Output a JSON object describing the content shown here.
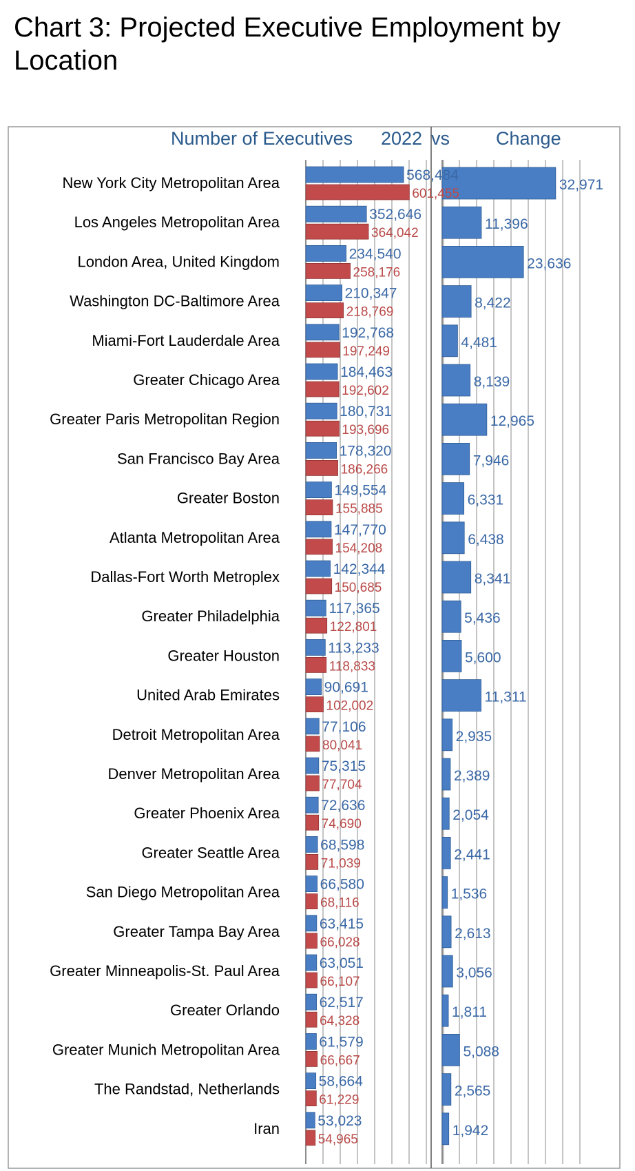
{
  "title": "Chart 3: Projected Executive Employment by Location",
  "colors": {
    "series_2022": "#4a7ec4",
    "series_compare": "#c34a4a",
    "change": "#4a7ec4",
    "header_text": "#2a5a8c"
  },
  "chart_data": [
    {
      "type": "bar",
      "orientation": "horizontal",
      "header": "Number of Executives",
      "header_year": "2022",
      "header_vs": "vs",
      "categories": [
        "New York City Metropolitan Area",
        "Los Angeles Metropolitan Area",
        "London Area, United Kingdom",
        "Washington DC-Baltimore Area",
        "Miami-Fort Lauderdale Area",
        "Greater Chicago Area",
        "Greater Paris Metropolitan Region",
        "San Francisco Bay Area",
        "Greater Boston",
        "Atlanta Metropolitan Area",
        "Dallas-Fort Worth Metroplex",
        "Greater Philadelphia",
        "Greater Houston",
        "United Arab Emirates",
        "Detroit Metropolitan Area",
        "Denver Metropolitan Area",
        "Greater Phoenix Area",
        "Greater Seattle Area",
        "San Diego Metropolitan Area",
        "Greater Tampa Bay Area",
        "Greater Minneapolis-St. Paul Area",
        "Greater Orlando",
        "Greater Munich Metropolitan Area",
        "The Randstad, Netherlands",
        "Iran"
      ],
      "series": [
        {
          "values": [
            568484,
            352646,
            234540,
            210347,
            192768,
            184463,
            180731,
            178320,
            149554,
            147770,
            142344,
            117365,
            113233,
            90691,
            77106,
            75315,
            72636,
            68598,
            66580,
            63415,
            63051,
            62517,
            61579,
            58664,
            53023
          ],
          "labels": [
            "568,484",
            "352,646",
            "234,540",
            "210,347",
            "192,768",
            "184,463",
            "180,731",
            "178,320",
            "149,554",
            "147,770",
            "142,344",
            "117,365",
            "113,233",
            "90,691",
            "77,106",
            "75,315",
            "72,636",
            "68,598",
            "66,580",
            "63,415",
            "63,051",
            "62,517",
            "61,579",
            "58,664",
            "53,023"
          ]
        },
        {
          "values": [
            601455,
            364042,
            258176,
            218769,
            197249,
            192602,
            193696,
            186266,
            155885,
            154208,
            150685,
            122801,
            118833,
            102002,
            80041,
            77704,
            74690,
            71039,
            68116,
            66028,
            66107,
            64328,
            66667,
            61229,
            54965
          ],
          "labels": [
            "601,455",
            "364,042",
            "258,176",
            "218,769",
            "197,249",
            "192,602",
            "193,696",
            "186,266",
            "155,885",
            "154,208",
            "150,685",
            "122,801",
            "118,833",
            "102,002",
            "80,041",
            "77,704",
            "74,690",
            "71,039",
            "68,116",
            "66,028",
            "66,107",
            "64,328",
            "66,667",
            "61,229",
            "54,965"
          ]
        }
      ],
      "xlim": [
        0,
        800000
      ],
      "grid": true
    },
    {
      "type": "bar",
      "orientation": "horizontal",
      "header": "Change",
      "series": [
        {
          "values": [
            32971,
            11396,
            23636,
            8422,
            4481,
            8139,
            12965,
            7946,
            6331,
            6438,
            8341,
            5436,
            5600,
            11311,
            2935,
            2389,
            2054,
            2441,
            1536,
            2613,
            3056,
            1811,
            5088,
            2565,
            1942
          ],
          "labels": [
            "32,971",
            "11,396",
            "23,636",
            "8,422",
            "4,481",
            "8,139",
            "12,965",
            "7,946",
            "6,331",
            "6,438",
            "8,341",
            "5,436",
            "5,600",
            "11,311",
            "2,935",
            "2,389",
            "2,054",
            "2,441",
            "1,536",
            "2,613",
            "3,056",
            "1,811",
            "5,088",
            "2,565",
            "1,942"
          ]
        }
      ],
      "xlim": [
        0,
        40000
      ],
      "grid": true
    }
  ]
}
